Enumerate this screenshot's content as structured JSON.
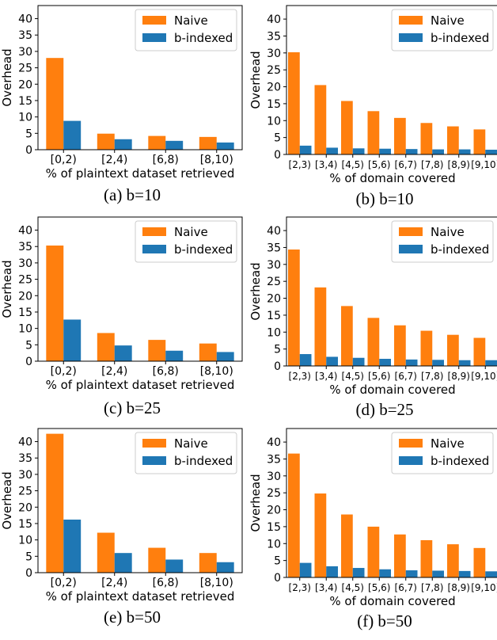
{
  "colors": {
    "naive": "#ff7f0e",
    "bindexed": "#1f77b4"
  },
  "chart_data": [
    {
      "type": "bar",
      "caption": "(a) b=10",
      "categories": [
        "[0,2)",
        "[2,4)",
        "[6,8)",
        "[8,10)"
      ],
      "series": [
        {
          "name": "Naive",
          "values": [
            28.0,
            4.9,
            4.2,
            3.9
          ]
        },
        {
          "name": "b-indexed",
          "values": [
            8.8,
            3.2,
            2.7,
            2.2
          ]
        }
      ],
      "xlabel": "% of plaintext dataset retrieved",
      "ylabel": "Overhead",
      "ylim": [
        0,
        44
      ],
      "yticks": [
        0,
        5,
        10,
        15,
        20,
        25,
        30,
        35,
        40
      ],
      "legend": "top-right",
      "grid": false
    },
    {
      "type": "bar",
      "caption": "(b) b=10",
      "categories": [
        "[2,3)",
        "[3,4)",
        "[4,5)",
        "[5,6)",
        "[6,7)",
        "[7,8)",
        "[8,9)",
        "[9,10)"
      ],
      "series": [
        {
          "name": "Naive",
          "values": [
            30.2,
            20.5,
            15.8,
            12.8,
            10.8,
            9.3,
            8.3,
            7.4
          ]
        },
        {
          "name": "b-indexed",
          "values": [
            2.6,
            2.0,
            1.8,
            1.7,
            1.6,
            1.5,
            1.5,
            1.4
          ]
        }
      ],
      "xlabel": "% of domain covered",
      "ylabel": "Overhead",
      "ylim": [
        0,
        44
      ],
      "yticks": [
        0,
        5,
        10,
        15,
        20,
        25,
        30,
        35,
        40
      ],
      "legend": "top-right",
      "grid": false
    },
    {
      "type": "bar",
      "caption": "(c) b=25",
      "categories": [
        "[0,2)",
        "[2,4)",
        "[6,8)",
        "[8,10)"
      ],
      "series": [
        {
          "name": "Naive",
          "values": [
            35.3,
            8.6,
            6.5,
            5.4
          ]
        },
        {
          "name": "b-indexed",
          "values": [
            12.7,
            4.8,
            3.2,
            2.8
          ]
        }
      ],
      "xlabel": "% of plaintext dataset retrieved",
      "ylabel": "Overhead",
      "ylim": [
        0,
        44
      ],
      "yticks": [
        0,
        5,
        10,
        15,
        20,
        25,
        30,
        35,
        40
      ],
      "legend": "top-right",
      "grid": false
    },
    {
      "type": "bar",
      "caption": "(d) b=25",
      "categories": [
        "[2,3)",
        "[3,4)",
        "[4,5)",
        "[5,6)",
        "[6,7)",
        "[7,8)",
        "[8,9)",
        "[9,10)"
      ],
      "series": [
        {
          "name": "Naive",
          "values": [
            34.4,
            23.2,
            17.7,
            14.2,
            12.0,
            10.4,
            9.2,
            8.3
          ]
        },
        {
          "name": "b-indexed",
          "values": [
            3.5,
            2.7,
            2.4,
            2.1,
            1.9,
            1.8,
            1.7,
            1.7
          ]
        }
      ],
      "xlabel": "% of domain covered",
      "ylabel": "Overhead",
      "ylim": [
        0,
        44
      ],
      "yticks": [
        0,
        5,
        10,
        15,
        20,
        25,
        30,
        35,
        40
      ],
      "legend": "top-right",
      "grid": false
    },
    {
      "type": "bar",
      "caption": "(e) b=50",
      "categories": [
        "[0,2)",
        "[2,4)",
        "[6,8)",
        "[8,10)"
      ],
      "series": [
        {
          "name": "Naive",
          "values": [
            42.4,
            12.2,
            7.6,
            6.0
          ]
        },
        {
          "name": "b-indexed",
          "values": [
            16.2,
            6.0,
            4.0,
            3.2
          ]
        }
      ],
      "xlabel": "% of plaintext dataset retrieved",
      "ylabel": "Overhead",
      "ylim": [
        0,
        44
      ],
      "yticks": [
        0,
        5,
        10,
        15,
        20,
        25,
        30,
        35,
        40
      ],
      "legend": "top-right",
      "grid": false
    },
    {
      "type": "bar",
      "caption": "(f) b=50",
      "categories": [
        "[2,3)",
        "[3,4)",
        "[4,5)",
        "[5,6)",
        "[6,7)",
        "[7,8)",
        "[8,9)",
        "[9,10)"
      ],
      "series": [
        {
          "name": "Naive",
          "values": [
            36.6,
            24.8,
            18.6,
            15.0,
            12.7,
            11.0,
            9.8,
            8.7
          ]
        },
        {
          "name": "b-indexed",
          "values": [
            4.3,
            3.3,
            2.8,
            2.4,
            2.1,
            2.0,
            1.9,
            1.8
          ]
        }
      ],
      "xlabel": "% of domain covered",
      "ylabel": "Overhead",
      "ylim": [
        0,
        44
      ],
      "yticks": [
        0,
        5,
        10,
        15,
        20,
        25,
        30,
        35,
        40
      ],
      "legend": "top-right",
      "grid": false
    }
  ]
}
